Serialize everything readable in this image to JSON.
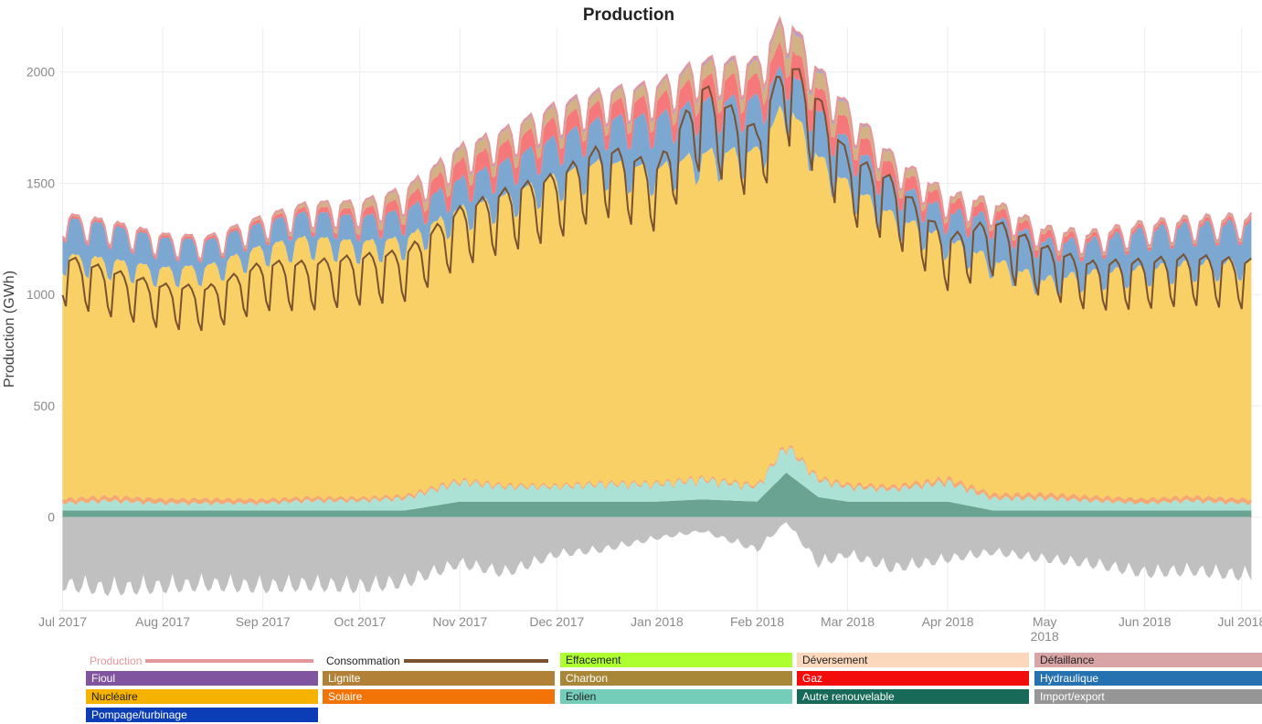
{
  "chart_data": {
    "type": "area",
    "title": "Production",
    "ylabel": "Production (GWh)",
    "xlabel": "",
    "ylim": [
      -420,
      2200
    ],
    "yticks": [
      0,
      500,
      1000,
      1500,
      2000
    ],
    "xlim": [
      "2017-06-30",
      "2018-07-07"
    ],
    "xticks": [
      {
        "date": "2017-07-01",
        "label": "Jul 2017"
      },
      {
        "date": "2017-08-01",
        "label": "Aug 2017"
      },
      {
        "date": "2017-09-01",
        "label": "Sep 2017"
      },
      {
        "date": "2017-10-01",
        "label": "Oct 2017"
      },
      {
        "date": "2017-11-01",
        "label": "Nov 2017"
      },
      {
        "date": "2017-12-01",
        "label": "Dec 2017"
      },
      {
        "date": "2018-01-01",
        "label": "Jan 2018"
      },
      {
        "date": "2018-02-01",
        "label": "Feb 2018"
      },
      {
        "date": "2018-03-01",
        "label": "Mar 2018"
      },
      {
        "date": "2018-04-01",
        "label": "Apr 2018"
      },
      {
        "date": "2018-05-01",
        "label": "May\n2018"
      },
      {
        "date": "2018-06-01",
        "label": "Jun 2018"
      },
      {
        "date": "2018-07-01",
        "label": "Jul 2018"
      }
    ],
    "grid": true,
    "stack_order": [
      "pompage",
      "eolien",
      "solaire",
      "nucleaire",
      "hydraulique",
      "gaz",
      "charbon",
      "fioul"
    ],
    "anchors": {
      "dates": [
        "2017-07-01",
        "2017-07-15",
        "2017-08-01",
        "2017-08-15",
        "2017-09-01",
        "2017-09-15",
        "2017-10-01",
        "2017-10-15",
        "2017-11-01",
        "2017-11-15",
        "2017-12-01",
        "2017-12-15",
        "2018-01-01",
        "2018-01-15",
        "2018-02-01",
        "2018-02-10",
        "2018-02-20",
        "2018-03-01",
        "2018-03-15",
        "2018-04-01",
        "2018-04-15",
        "2018-05-01",
        "2018-05-15",
        "2018-06-01",
        "2018-06-15",
        "2018-07-01"
      ],
      "nucleaire": [
        1080,
        1050,
        1020,
        1030,
        1120,
        1150,
        1130,
        1140,
        1200,
        1280,
        1370,
        1420,
        1390,
        1440,
        1480,
        1520,
        1420,
        1330,
        1200,
        1060,
        1040,
        950,
        990,
        1020,
        1030,
        1050
      ],
      "hydraulique": [
        160,
        150,
        130,
        110,
        100,
        110,
        110,
        120,
        130,
        150,
        170,
        190,
        230,
        230,
        230,
        160,
        200,
        190,
        150,
        120,
        190,
        170,
        140,
        170,
        170,
        170
      ],
      "gaz": [
        10,
        10,
        10,
        10,
        15,
        20,
        30,
        50,
        80,
        80,
        80,
        70,
        80,
        100,
        90,
        110,
        100,
        80,
        60,
        50,
        40,
        35,
        20,
        15,
        15,
        15
      ],
      "charbon": [
        5,
        5,
        5,
        5,
        10,
        15,
        30,
        40,
        50,
        50,
        50,
        40,
        50,
        60,
        60,
        90,
        70,
        60,
        40,
        20,
        20,
        15,
        10,
        10,
        10,
        10
      ],
      "fioul": [
        2,
        2,
        2,
        2,
        3,
        4,
        6,
        8,
        10,
        10,
        12,
        10,
        12,
        14,
        15,
        20,
        16,
        12,
        8,
        5,
        4,
        3,
        3,
        2,
        2,
        2
      ],
      "pompage": [
        30,
        30,
        30,
        30,
        30,
        30,
        30,
        30,
        70,
        70,
        70,
        70,
        70,
        80,
        70,
        200,
        90,
        70,
        70,
        70,
        30,
        30,
        30,
        30,
        30,
        30
      ],
      "eolien": [
        30,
        40,
        30,
        30,
        30,
        40,
        40,
        50,
        80,
        60,
        60,
        70,
        70,
        80,
        60,
        110,
        70,
        60,
        50,
        80,
        50,
        50,
        40,
        30,
        40,
        30
      ],
      "solaire": [
        20,
        20,
        20,
        20,
        18,
        16,
        14,
        12,
        10,
        9,
        8,
        8,
        8,
        9,
        10,
        11,
        12,
        13,
        15,
        17,
        18,
        20,
        20,
        20,
        20,
        20
      ],
      "import_export": [
        -290,
        -310,
        -300,
        -290,
        -300,
        -290,
        -300,
        -280,
        -200,
        -240,
        -160,
        -140,
        -90,
        -60,
        -140,
        -20,
        -200,
        -160,
        -220,
        -180,
        -150,
        -180,
        -200,
        -240,
        -230,
        -250
      ],
      "consommation": [
        1160,
        1100,
        1030,
        1020,
        1130,
        1130,
        1160,
        1180,
        1370,
        1450,
        1520,
        1650,
        1560,
        1920,
        1720,
        2050,
        1860,
        1610,
        1500,
        1240,
        1320,
        1200,
        1130,
        1140,
        1160,
        1140
      ]
    },
    "weekly_pattern": {
      "consommation": [
        1.0,
        1.01,
        1.02,
        1.0,
        0.96,
        0.86,
        0.82
      ],
      "production": [
        1.0,
        1.02,
        1.03,
        1.02,
        0.99,
        0.94,
        0.93
      ]
    }
  },
  "legend": {
    "production": {
      "label": "Production",
      "color": "#e4989c"
    },
    "consommation": {
      "label": "Consommation",
      "color": "#7a5230"
    },
    "effacement": {
      "label": "Effacement",
      "color": "#adff2f"
    },
    "deversement": {
      "label": "Déversement",
      "color": "#fbd7bb"
    },
    "defaillance": {
      "label": "Défaillance",
      "color": "#d8a4a6"
    },
    "fioul": {
      "label": "Fioul",
      "color": "#80549f"
    },
    "lignite": {
      "label": "Lignite",
      "color": "#b18137"
    },
    "charbon": {
      "label": "Charbon",
      "color": "#a98738"
    },
    "gaz": {
      "label": "Gaz",
      "color": "#f20c0c"
    },
    "hydraulique": {
      "label": "Hydraulique",
      "color": "#2672b0"
    },
    "nucleaire": {
      "label": "Nucléaire",
      "color": "#f5b300"
    },
    "solaire": {
      "label": "Solaire",
      "color": "#f27406"
    },
    "eolien": {
      "label": "Eolien",
      "color": "#74cdb9"
    },
    "autre": {
      "label": "Autre renouvelable",
      "color": "#166a57"
    },
    "import_export": {
      "label": "Import/export",
      "color": "#969696"
    },
    "pompage": {
      "label": "Pompage/turbinage",
      "color": "#0b3eb6"
    }
  },
  "area_colors": {
    "nucleaire": "#f8d066",
    "hydraulique": "#7ba7d1",
    "gaz": "#f5787a",
    "charbon": "#d2b184",
    "fioul": "#b49ec9",
    "pompage": "#6aa392",
    "eolien": "#abe2d5",
    "solaire": "#f5a872",
    "import_export": "#c0c0c0"
  }
}
